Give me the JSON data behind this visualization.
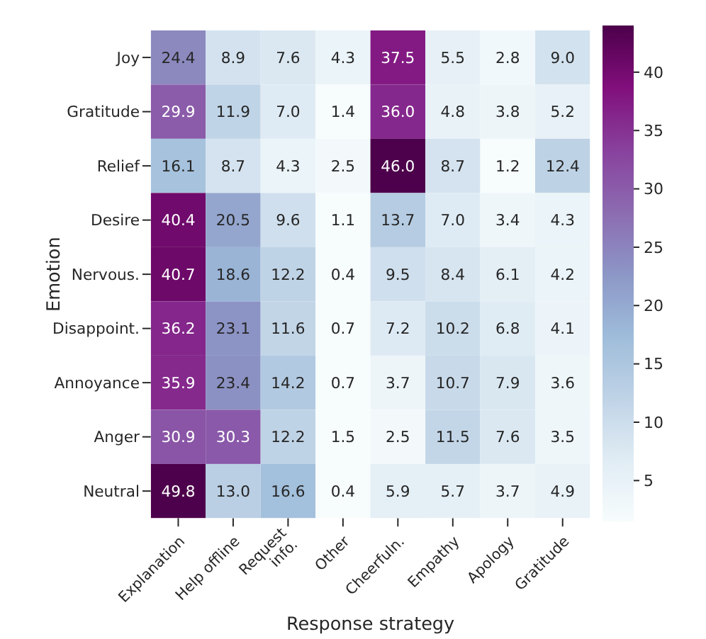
{
  "chart_data": {
    "type": "heatmap",
    "xlabel": "Response strategy",
    "ylabel": "Emotion",
    "categories": [
      "Explanation",
      "Help offline",
      "Request info.",
      "Other",
      "Cheerfuln.",
      "Empathy",
      "Apology",
      "Gratitude"
    ],
    "y_categories": [
      "Joy",
      "Gratitude",
      "Relief",
      "Desire",
      "Nervous.",
      "Disappoint.",
      "Annoyance",
      "Anger",
      "Neutral"
    ],
    "cells": [
      [
        24.4,
        8.9,
        7.6,
        4.3,
        37.5,
        5.5,
        2.8,
        9.0
      ],
      [
        29.9,
        11.9,
        7.0,
        1.4,
        36.0,
        4.8,
        3.8,
        5.2
      ],
      [
        16.1,
        8.7,
        4.3,
        2.5,
        46.0,
        8.7,
        1.2,
        12.4
      ],
      [
        40.4,
        20.5,
        9.6,
        1.1,
        13.7,
        7.0,
        3.4,
        4.3
      ],
      [
        40.7,
        18.6,
        12.2,
        0.4,
        9.5,
        8.4,
        6.1,
        4.2
      ],
      [
        36.2,
        23.1,
        11.6,
        0.7,
        7.2,
        10.2,
        6.8,
        4.1
      ],
      [
        35.9,
        23.4,
        14.2,
        0.7,
        3.7,
        10.7,
        7.9,
        3.6
      ],
      [
        30.9,
        30.3,
        12.2,
        1.5,
        2.5,
        11.5,
        7.6,
        3.5
      ],
      [
        49.8,
        13.0,
        16.6,
        0.4,
        5.9,
        5.7,
        3.7,
        4.9
      ]
    ],
    "cell_labels": [
      [
        "24.4",
        "8.9",
        "7.6",
        "4.3",
        "37.5",
        "5.5",
        "2.8",
        "9.0"
      ],
      [
        "29.9",
        "11.9",
        "7.0",
        "1.4",
        "36.0",
        "4.8",
        "3.8",
        "5.2"
      ],
      [
        "16.1",
        "8.7",
        "4.3",
        "2.5",
        "46.0",
        "8.7",
        "1.2",
        "12.4"
      ],
      [
        "40.4",
        "20.5",
        "9.6",
        "1.1",
        "13.7",
        "7.0",
        "3.4",
        "4.3"
      ],
      [
        "40.7",
        "18.6",
        "12.2",
        "0.4",
        "9.5",
        "8.4",
        "6.1",
        "4.2"
      ],
      [
        "36.2",
        "23.1",
        "11.6",
        "0.7",
        "7.2",
        "10.2",
        "6.8",
        "4.1"
      ],
      [
        "35.9",
        "23.4",
        "14.2",
        "0.7",
        "3.7",
        "10.7",
        "7.9",
        "3.6"
      ],
      [
        "30.9",
        "30.3",
        "12.2",
        "1.5",
        "2.5",
        "11.5",
        "7.6",
        "3.5"
      ],
      [
        "49.8",
        "13.0",
        "16.6",
        "0.4",
        "5.9",
        "5.7",
        "3.7",
        "4.9"
      ]
    ],
    "data_labels": true,
    "clim": [
      1.5,
      44
    ],
    "cticks": [
      5,
      10,
      15,
      20,
      25,
      30,
      35,
      40
    ]
  }
}
